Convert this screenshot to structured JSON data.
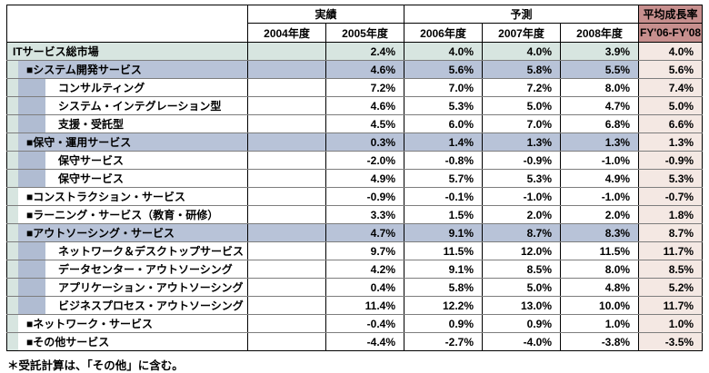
{
  "chart_data": {
    "type": "table",
    "header": {
      "row_label_column": "",
      "group_actual": "実績",
      "group_forecast": "予測",
      "avg_line1": "平均成長率",
      "avg_line2": "FY'06-FY'08",
      "year_columns": [
        "2004年度",
        "2005年度",
        "2006年度",
        "2007年度",
        "2008年度"
      ]
    },
    "rows": [
      {
        "label": "ITサービス総市場",
        "level": 0,
        "tone": "teal",
        "values": [
          "",
          "2.4%",
          "4.0%",
          "4.0%",
          "3.9%"
        ],
        "avg": "4.0%"
      },
      {
        "label": "■システム開発サービス",
        "level": 1,
        "tone": "blue",
        "values": [
          "",
          "4.6%",
          "5.6%",
          "5.8%",
          "5.5%"
        ],
        "avg": "5.6%"
      },
      {
        "label": "コンサルティング",
        "level": 2,
        "tone": "white",
        "values": [
          "",
          "7.2%",
          "7.0%",
          "7.2%",
          "8.0%"
        ],
        "avg": "7.4%"
      },
      {
        "label": "システム・インテグレーション型",
        "level": 2,
        "tone": "white",
        "values": [
          "",
          "4.6%",
          "5.3%",
          "5.0%",
          "4.7%"
        ],
        "avg": "5.0%"
      },
      {
        "label": "支援・受託型",
        "level": 2,
        "tone": "white",
        "values": [
          "",
          "4.5%",
          "6.0%",
          "7.0%",
          "6.8%"
        ],
        "avg": "6.6%"
      },
      {
        "label": "■保守・運用サービス",
        "level": 1,
        "tone": "blue",
        "values": [
          "",
          "0.3%",
          "1.4%",
          "1.3%",
          "1.3%"
        ],
        "avg": "1.3%"
      },
      {
        "label": "保守サービス",
        "level": 2,
        "tone": "white",
        "values": [
          "",
          "-2.0%",
          "-0.8%",
          "-0.9%",
          "-1.0%"
        ],
        "avg": "-0.9%"
      },
      {
        "label": "保守サービス",
        "level": 2,
        "tone": "white",
        "values": [
          "",
          "4.9%",
          "5.7%",
          "5.3%",
          "4.9%"
        ],
        "avg": "5.3%"
      },
      {
        "label": "■コンストラクション・サービス",
        "level": 1,
        "tone": "white",
        "values": [
          "",
          "-0.9%",
          "-0.1%",
          "-1.0%",
          "-1.0%"
        ],
        "avg": "-0.7%"
      },
      {
        "label": "■ラーニング・サービス（教育・研修）",
        "level": 1,
        "tone": "white",
        "values": [
          "",
          "3.3%",
          "1.5%",
          "2.0%",
          "2.0%"
        ],
        "avg": "1.8%"
      },
      {
        "label": "■アウトソーシング・サービス",
        "level": 1,
        "tone": "blue",
        "values": [
          "",
          "4.7%",
          "9.1%",
          "8.7%",
          "8.3%"
        ],
        "avg": "8.7%"
      },
      {
        "label": "ネットワーク＆デスクトップサービス",
        "level": 2,
        "tone": "white",
        "values": [
          "",
          "9.7%",
          "11.5%",
          "12.0%",
          "11.5%"
        ],
        "avg": "11.7%"
      },
      {
        "label": "データセンター・アウトソーシング",
        "level": 2,
        "tone": "white",
        "values": [
          "",
          "4.2%",
          "9.1%",
          "8.5%",
          "8.0%"
        ],
        "avg": "8.5%"
      },
      {
        "label": "アプリケーション・アウトソーシング",
        "level": 2,
        "tone": "white",
        "values": [
          "",
          "0.4%",
          "5.8%",
          "5.0%",
          "4.8%"
        ],
        "avg": "5.2%"
      },
      {
        "label": "ビジネスプロセス・アウトソーシング",
        "level": 2,
        "tone": "white",
        "values": [
          "",
          "11.4%",
          "12.2%",
          "13.0%",
          "10.0%"
        ],
        "avg": "11.7%"
      },
      {
        "label": "■ネットワーク・サービス",
        "level": 1,
        "tone": "white",
        "values": [
          "",
          "-0.4%",
          "0.9%",
          "0.9%",
          "1.0%"
        ],
        "avg": "1.0%"
      },
      {
        "label": "■その他サービス",
        "level": 1,
        "tone": "white",
        "values": [
          "",
          "-4.4%",
          "-2.7%",
          "-4.0%",
          "-3.8%"
        ],
        "avg": "-3.5%"
      }
    ],
    "footnote": "＊受託計算は、「その他」に含む。"
  },
  "colors": {
    "teal_row": "#d7e5e0",
    "blue_row": "#b8c3d8",
    "indent_blue_strip": "#b0bcd2",
    "avg_header_bg": "#c78f8e",
    "avg_cell_bg": "#f4e8e3",
    "grid_line": "#000000",
    "row_line": "#7d7d7d"
  }
}
